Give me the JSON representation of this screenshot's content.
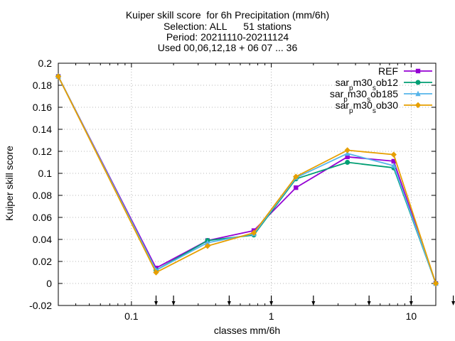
{
  "chart_data": {
    "type": "line",
    "title_lines": [
      "Kuiper skill score  for 6h Precipitation (mm/6h)",
      "Selection: ALL      51 stations",
      "Period: 20211110-20211124",
      "Used 00,06,12,18 + 06 07 ... 36"
    ],
    "xlabel": "classes mm/6h",
    "ylabel": "Kuiper skill score",
    "xscale": "log",
    "xlim": [
      0.03,
      15
    ],
    "ylim": [
      -0.02,
      0.2
    ],
    "x_ticks": [
      {
        "value": 0.1,
        "label": "0.1"
      },
      {
        "value": 1,
        "label": "1"
      },
      {
        "value": 10,
        "label": "10"
      }
    ],
    "y_ticks": [
      {
        "value": -0.02,
        "label": "-0.02"
      },
      {
        "value": 0,
        "label": "0"
      },
      {
        "value": 0.02,
        "label": "0.02"
      },
      {
        "value": 0.04,
        "label": "0.04"
      },
      {
        "value": 0.06,
        "label": "0.06"
      },
      {
        "value": 0.08,
        "label": "0.08"
      },
      {
        "value": 0.1,
        "label": "0.1"
      },
      {
        "value": 0.12,
        "label": "0.12"
      },
      {
        "value": 0.14,
        "label": "0.14"
      },
      {
        "value": 0.16,
        "label": "0.16"
      },
      {
        "value": 0.18,
        "label": "0.18"
      },
      {
        "value": 0.2,
        "label": "0.2"
      }
    ],
    "arrow_x": [
      0.15,
      0.2,
      0.5,
      1,
      2,
      5,
      10,
      20
    ],
    "grid": true,
    "legend_position": "top-right",
    "x": [
      0.03,
      0.15,
      0.35,
      0.75,
      1.5,
      3.5,
      7.5,
      15
    ],
    "series": [
      {
        "name": "REF",
        "name_main": "REF",
        "name_sub": "",
        "name_tail": "",
        "color": "#9400d3",
        "marker": "square",
        "values": [
          0.188,
          0.014,
          0.039,
          0.048,
          0.087,
          0.115,
          0.111,
          0.0
        ]
      },
      {
        "name": "sar_p m30_s ob12",
        "name_main": "sar",
        "name_sub": "p",
        "name_mid": "m30",
        "name_sub2": "s",
        "name_tail": "ob12",
        "color": "#009e73",
        "marker": "circle",
        "values": [
          0.188,
          0.012,
          0.039,
          0.044,
          0.095,
          0.11,
          0.105,
          0.0
        ]
      },
      {
        "name": "sar_p m30_s ob185",
        "name_main": "sar",
        "name_sub": "p",
        "name_mid": "m30",
        "name_sub2": "s",
        "name_tail": "ob185",
        "color": "#56b4e9",
        "marker": "triangle",
        "values": [
          0.188,
          0.012,
          0.037,
          0.045,
          0.096,
          0.118,
          0.107,
          0.0
        ]
      },
      {
        "name": "sar_p m30_s ob30",
        "name_main": "sar",
        "name_sub": "p",
        "name_mid": "m30",
        "name_sub2": "s",
        "name_tail": "ob30",
        "color": "#e69f00",
        "marker": "diamond",
        "values": [
          0.188,
          0.01,
          0.034,
          0.046,
          0.097,
          0.121,
          0.117,
          0.0
        ]
      }
    ]
  }
}
